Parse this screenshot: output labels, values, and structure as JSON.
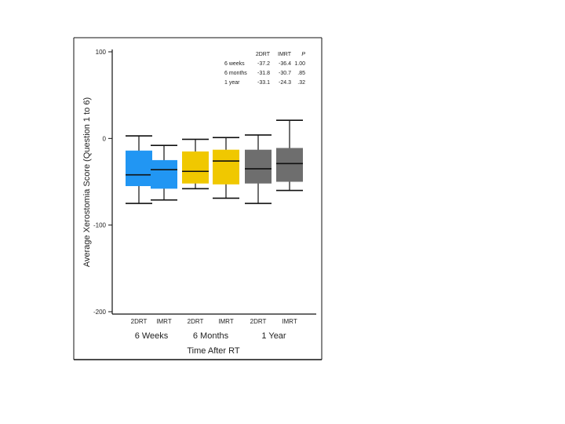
{
  "chart_data": {
    "type": "box",
    "ylabel": "Average Xerostomia Score (Question 1 to 6)",
    "xlabel": "Time After RT",
    "ylim": [
      -200,
      100
    ],
    "yticks": [
      100,
      0,
      -100,
      -200
    ],
    "groups": [
      {
        "label": "6 Weeks",
        "color": "#2196f3"
      },
      {
        "label": "6 Months",
        "color": "#f0c800"
      },
      {
        "label": "1 Year",
        "color": "#6e6e6e"
      }
    ],
    "series": [
      {
        "name": "2DRT",
        "group": 0,
        "min": -75,
        "q1": -55,
        "median": -42,
        "q3": -14,
        "max": 3
      },
      {
        "name": "IMRT",
        "group": 0,
        "min": -71,
        "q1": -58,
        "median": -36,
        "q3": -25,
        "max": -8
      },
      {
        "name": "2DRT",
        "group": 1,
        "min": -58,
        "q1": -52,
        "median": -38,
        "q3": -15,
        "max": -1
      },
      {
        "name": "IMRT",
        "group": 1,
        "min": -69,
        "q1": -53,
        "median": -26,
        "q3": -13,
        "max": 1
      },
      {
        "name": "2DRT",
        "group": 2,
        "min": -75,
        "q1": -52,
        "median": -35,
        "q3": -13,
        "max": 4
      },
      {
        "name": "IMRT",
        "group": 2,
        "min": -60,
        "q1": -50,
        "median": -29,
        "q3": -11,
        "max": 21
      }
    ],
    "table": {
      "headers": [
        "",
        "2DRT",
        "IMRT",
        "P"
      ],
      "rows": [
        [
          "6 weeks",
          "-37.2",
          "-36.4",
          "1.00"
        ],
        [
          "6 months",
          "-31.8",
          "-30.7",
          ".85"
        ],
        [
          "1 year",
          "-33.1",
          "-24.3",
          ".32"
        ]
      ]
    }
  }
}
